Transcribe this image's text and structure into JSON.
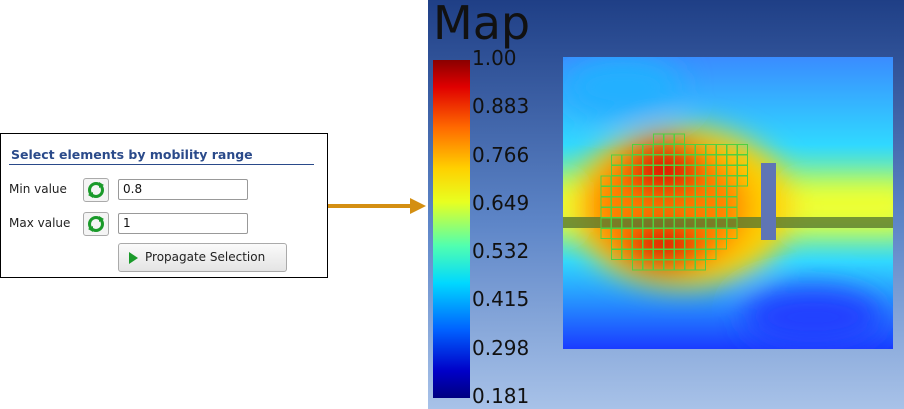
{
  "panel": {
    "title": "Select elements by mobility range",
    "fields": [
      {
        "label": "Min value",
        "value": "0.8"
      },
      {
        "label": "Max value",
        "value": "1"
      }
    ],
    "button": "Propagate Selection"
  },
  "map": {
    "title": "Map",
    "colorbar": {
      "ticks": [
        "1.00",
        "0.883",
        "0.766",
        "0.649",
        "0.532",
        "0.415",
        "0.298",
        "0.181"
      ]
    }
  }
}
